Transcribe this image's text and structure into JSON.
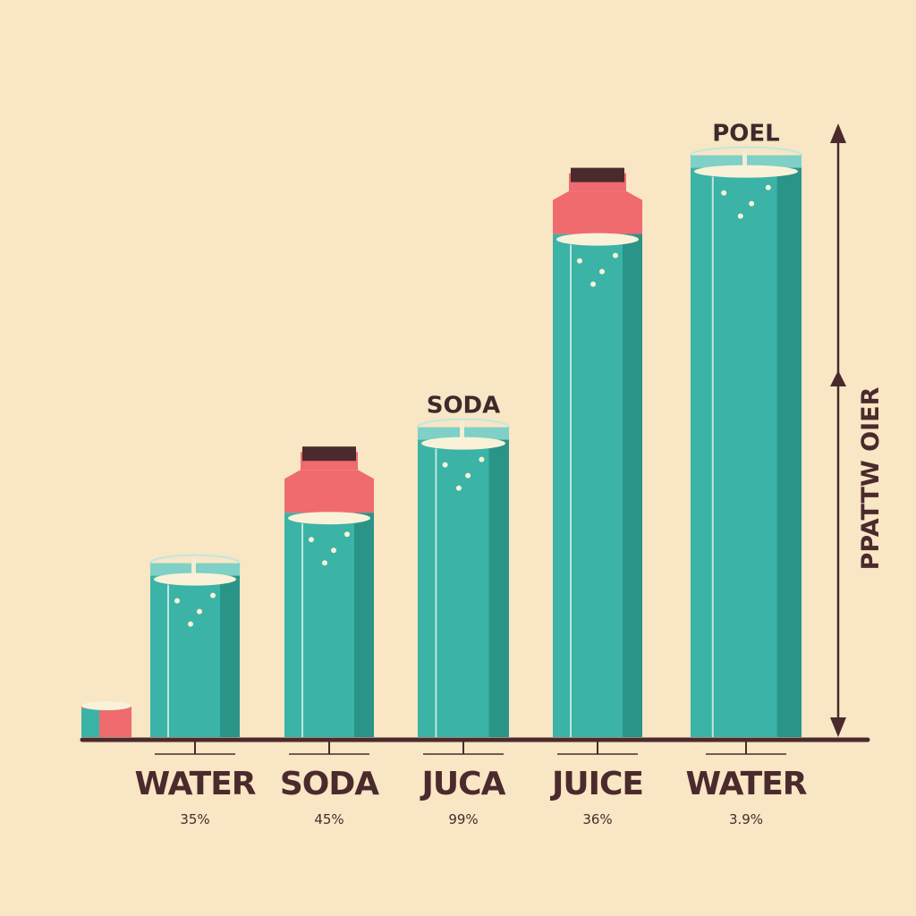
{
  "chart_data": {
    "type": "bar",
    "categories": [
      "WATER",
      "SODA",
      "JUCA",
      "JUICE",
      "WATER"
    ],
    "percent_labels": [
      "35%",
      "45%",
      "99%",
      "36%",
      "3.9%"
    ],
    "top_labels": [
      "",
      "",
      "SODA",
      "",
      "POEL"
    ],
    "values": [
      24,
      33,
      44,
      74,
      84
    ],
    "ylabel": "PPATTW OIER",
    "xlabel": "",
    "title": "",
    "ylim": [
      0,
      90
    ],
    "grid": false,
    "containers": [
      "glass",
      "carton",
      "glass",
      "carton",
      "glass"
    ]
  },
  "colors": {
    "background": "#f8e6c4",
    "liquid": "#3bb3a6",
    "liquid_dark": "#2a9488",
    "accent": "#ef6b6f",
    "cap": "#4a2a2c",
    "axis": "#4a2a2c",
    "foam": "#f9f2d8"
  }
}
